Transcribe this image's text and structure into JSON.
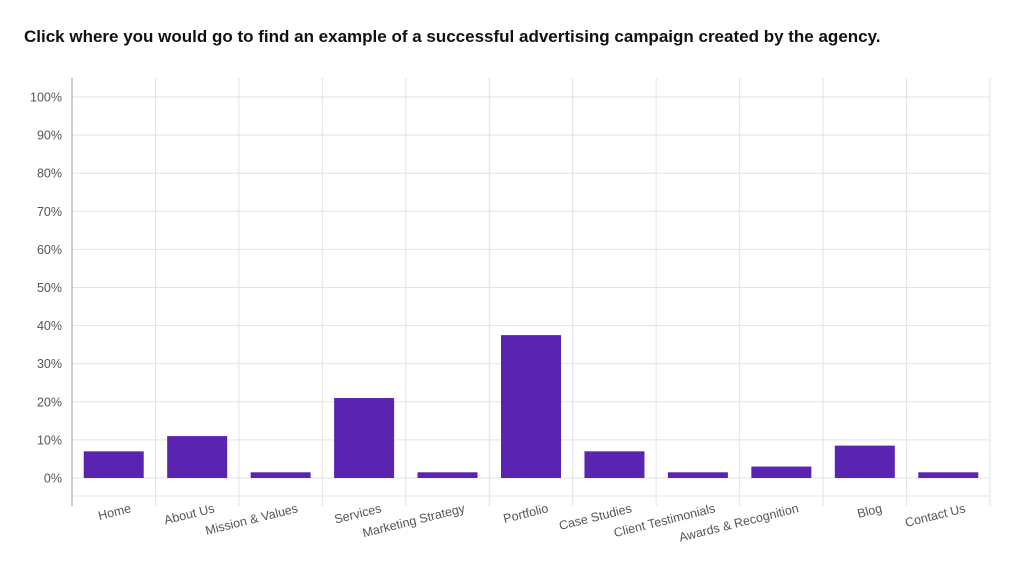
{
  "question": {
    "text": "Click where you would go to find an example of a successful advertising campaign created by the agency."
  },
  "colors": {
    "bar": "#5b24b0",
    "grid": "#e3e3e3",
    "axis": "#bdbdbd",
    "tick_text": "#555555",
    "title_text": "#111111"
  },
  "chart_data": {
    "type": "bar",
    "categories": [
      "Home",
      "About Us",
      "Mission & Values",
      "Services",
      "Marketing Strategy",
      "Portfolio",
      "Case Studies",
      "Client Testimonials",
      "Awards & Recognition",
      "Blog",
      "Contact Us"
    ],
    "values": [
      7,
      11,
      1.5,
      21,
      1.5,
      37.5,
      7,
      1.5,
      3,
      8.5,
      1.5
    ],
    "ylim": [
      0,
      100
    ],
    "yticks": [
      0,
      10,
      20,
      30,
      40,
      50,
      60,
      70,
      80,
      90,
      100
    ],
    "ytick_labels": [
      "0%",
      "10%",
      "20%",
      "30%",
      "40%",
      "50%",
      "60%",
      "70%",
      "80%",
      "90%",
      "100%"
    ],
    "grid": true,
    "legend": "none"
  }
}
